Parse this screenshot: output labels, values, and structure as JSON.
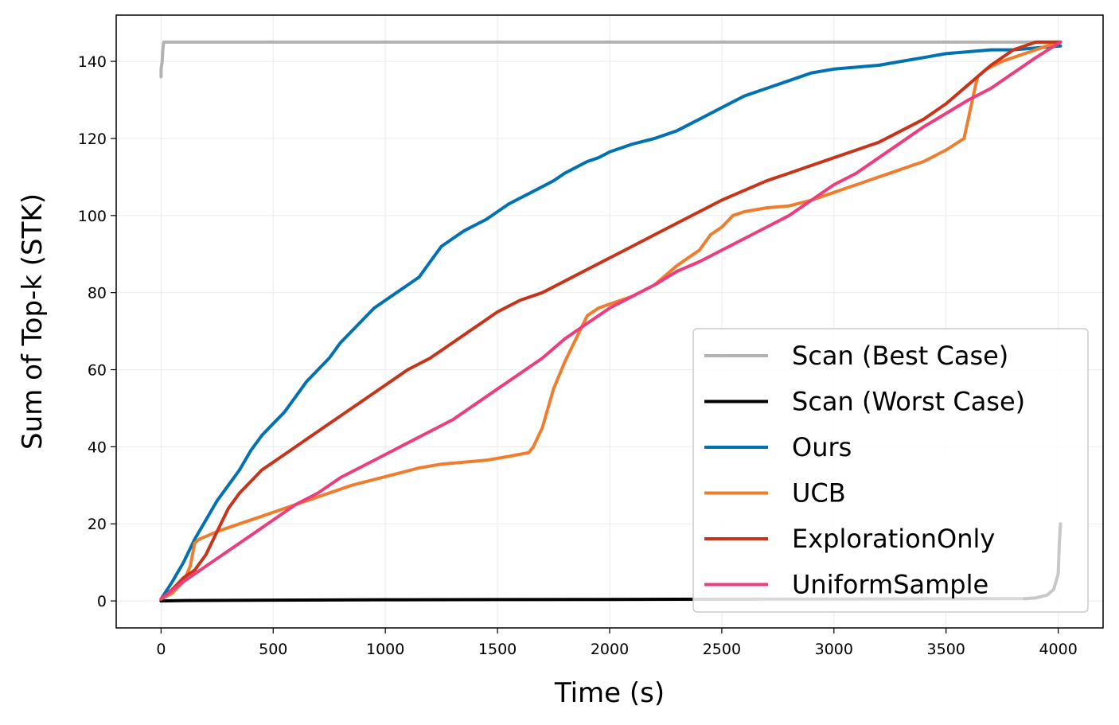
{
  "chart_data": {
    "type": "line",
    "xlabel": "Time (s)",
    "ylabel": "Sum of Top-k (STK)",
    "xlim": [
      -200,
      4200
    ],
    "ylim": [
      -7,
      152
    ],
    "xticks": [
      0,
      500,
      1000,
      1500,
      2000,
      2500,
      3000,
      3500,
      4000
    ],
    "yticks": [
      0,
      20,
      40,
      60,
      80,
      100,
      120,
      140
    ],
    "grid": true,
    "legend_position": "lower-right",
    "series": [
      {
        "name": "Scan (Best Case)",
        "color": "#b3b3b3",
        "x": [
          0,
          0,
          5,
          8,
          12,
          4010
        ],
        "y": [
          136,
          138,
          140,
          143,
          145,
          145
        ]
      },
      {
        "name": "Scan (Worst Case)",
        "color": "#000000",
        "x": [
          0,
          100,
          500,
          1000,
          1500,
          2000,
          2500,
          3000,
          3500,
          3850
        ],
        "y": [
          0,
          0.1,
          0.2,
          0.3,
          0.35,
          0.4,
          0.45,
          0.5,
          0.55,
          0.6
        ]
      },
      {
        "name": "Ours",
        "color": "#0072b2",
        "x": [
          0,
          50,
          100,
          150,
          200,
          250,
          300,
          350,
          400,
          450,
          500,
          550,
          600,
          650,
          700,
          750,
          800,
          850,
          900,
          950,
          1000,
          1050,
          1100,
          1150,
          1200,
          1250,
          1300,
          1350,
          1400,
          1450,
          1500,
          1550,
          1600,
          1650,
          1700,
          1750,
          1800,
          1850,
          1900,
          1950,
          2000,
          2100,
          2200,
          2300,
          2400,
          2500,
          2600,
          2700,
          2800,
          2900,
          3000,
          3100,
          3200,
          3300,
          3400,
          3500,
          3600,
          3700,
          3800,
          3900,
          4010
        ],
        "y": [
          0.5,
          5,
          10,
          16,
          21,
          26,
          30,
          34,
          39,
          43,
          46,
          49,
          53,
          57,
          60,
          63,
          67,
          70,
          73,
          76,
          78,
          80,
          82,
          84,
          88,
          92,
          94,
          96,
          97.5,
          99,
          101,
          103,
          104.5,
          106,
          107.5,
          109,
          111,
          112.5,
          114,
          115,
          116.5,
          118.5,
          120,
          122,
          125,
          128,
          131,
          133,
          135,
          137,
          138,
          138.5,
          139,
          140,
          141,
          142,
          142.5,
          143,
          143,
          143.5,
          144
        ]
      },
      {
        "name": "UCB",
        "color": "#f07d2e",
        "x": [
          0,
          50,
          100,
          130,
          150,
          170,
          250,
          350,
          450,
          550,
          650,
          750,
          850,
          950,
          1050,
          1150,
          1250,
          1350,
          1450,
          1550,
          1640,
          1660,
          1700,
          1750,
          1800,
          1850,
          1900,
          1950,
          2000,
          2100,
          2200,
          2300,
          2400,
          2450,
          2500,
          2550,
          2600,
          2700,
          2800,
          2900,
          3000,
          3050,
          3100,
          3200,
          3300,
          3400,
          3500,
          3580,
          3610,
          3640,
          3680,
          3750,
          3850,
          3950,
          4010
        ],
        "y": [
          0.5,
          2,
          5,
          9,
          15,
          16,
          18,
          20,
          22,
          24,
          26,
          28,
          30,
          31.5,
          33,
          34.5,
          35.5,
          36,
          36.5,
          37.5,
          38.5,
          40,
          45,
          55,
          62,
          68,
          74,
          76,
          77,
          79,
          82,
          87,
          91,
          95,
          97,
          100,
          101,
          102,
          102.5,
          104,
          106,
          107,
          108,
          110,
          112,
          114,
          117,
          120,
          128,
          136,
          138,
          140,
          142,
          144,
          145
        ]
      },
      {
        "name": "ExplorationOnly",
        "color": "#c8341a",
        "x": [
          0,
          50,
          100,
          150,
          200,
          250,
          300,
          350,
          400,
          450,
          500,
          550,
          600,
          650,
          700,
          750,
          800,
          850,
          900,
          950,
          1000,
          1050,
          1100,
          1200,
          1300,
          1400,
          1500,
          1600,
          1700,
          1800,
          1900,
          2000,
          2100,
          2200,
          2300,
          2400,
          2500,
          2600,
          2700,
          2800,
          2900,
          3000,
          3100,
          3200,
          3300,
          3400,
          3500,
          3600,
          3700,
          3800,
          3900,
          4010
        ],
        "y": [
          0.5,
          3,
          6,
          8,
          12,
          18,
          24,
          28,
          31,
          34,
          36,
          38,
          40,
          42,
          44,
          46,
          48,
          50,
          52,
          54,
          56,
          58,
          60,
          63,
          67,
          71,
          75,
          78,
          80,
          83,
          86,
          89,
          92,
          95,
          98,
          101,
          104,
          106.5,
          109,
          111,
          113,
          115,
          117,
          119,
          122,
          125,
          129,
          134,
          139,
          143,
          145,
          145
        ]
      },
      {
        "name": "UniformSample",
        "color": "#ec3d7f",
        "x": [
          0,
          100,
          200,
          300,
          400,
          500,
          600,
          700,
          800,
          900,
          1000,
          1100,
          1200,
          1300,
          1400,
          1500,
          1600,
          1700,
          1800,
          1900,
          2000,
          2100,
          2200,
          2300,
          2400,
          2500,
          2600,
          2700,
          2800,
          2900,
          3000,
          3100,
          3200,
          3300,
          3400,
          3500,
          3600,
          3700,
          3800,
          3900,
          4010
        ],
        "y": [
          0.5,
          5,
          9,
          13,
          17,
          21,
          25,
          28,
          32,
          35,
          38,
          41,
          44,
          47,
          51,
          55,
          59,
          63,
          68,
          72,
          76,
          79,
          82,
          85.5,
          88,
          91,
          94,
          97,
          100,
          104,
          108,
          111,
          115,
          119,
          123,
          126.5,
          130,
          133,
          137,
          141,
          145
        ]
      }
    ],
    "worst_case_finish": {
      "x": [
        3850,
        3900,
        3950,
        3980,
        4000,
        4005,
        4010
      ],
      "y": [
        0.6,
        0.8,
        1.5,
        3,
        7,
        15,
        20
      ]
    }
  }
}
